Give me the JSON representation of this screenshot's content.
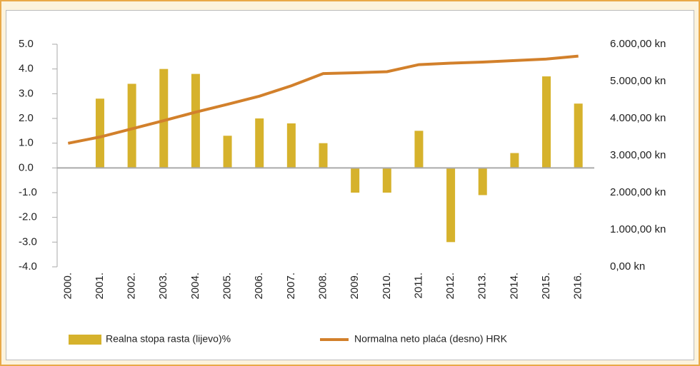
{
  "chart_data": {
    "type": "bar-line",
    "categories": [
      "2000.",
      "2001.",
      "2002.",
      "2003.",
      "2004.",
      "2005.",
      "2006.",
      "2007.",
      "2008.",
      "2009.",
      "2010.",
      "2011.",
      "2012.",
      "2013.",
      "2014.",
      "2015.",
      "2016."
    ],
    "series": [
      {
        "name": "Realna stopa rasta (lijevo)%",
        "type": "bar",
        "color": "#d6b22c",
        "values": [
          null,
          2.8,
          3.4,
          4.0,
          3.8,
          1.3,
          2.0,
          1.8,
          1.0,
          -1.0,
          -1.0,
          1.5,
          -3.0,
          -1.1,
          0.6,
          3.7,
          2.6
        ]
      },
      {
        "name": "Normalna neto plaća (desno) HRK",
        "type": "line",
        "axis": "y2",
        "color": "#d2802b",
        "values": [
          3330,
          3500,
          3720,
          3940,
          4170,
          4380,
          4600,
          4880,
          5210,
          5230,
          5260,
          5450,
          5490,
          5520,
          5560,
          5600,
          5680
        ]
      }
    ],
    "ylim": [
      -4,
      5
    ],
    "yticks": [
      {
        "value": -4,
        "label": "-4.0"
      },
      {
        "value": -3,
        "label": "-3.0"
      },
      {
        "value": -2,
        "label": "-2.0"
      },
      {
        "value": -1,
        "label": "-1.0"
      },
      {
        "value": 0,
        "label": "0.0"
      },
      {
        "value": 1,
        "label": "1.0"
      },
      {
        "value": 2,
        "label": "2.0"
      },
      {
        "value": 3,
        "label": "3.0"
      },
      {
        "value": 4,
        "label": "4.0"
      },
      {
        "value": 5,
        "label": "5.0"
      }
    ],
    "y2lim": [
      0,
      6000
    ],
    "y2ticks": [
      {
        "value": 0,
        "label": "0,00 kn"
      },
      {
        "value": 1000,
        "label": "1.000,00 kn"
      },
      {
        "value": 2000,
        "label": "2.000,00 kn"
      },
      {
        "value": 3000,
        "label": "3.000,00 kn"
      },
      {
        "value": 4000,
        "label": "4.000,00 kn"
      },
      {
        "value": 5000,
        "label": "5.000,00 kn"
      },
      {
        "value": 6000,
        "label": "6.000,00 kn"
      }
    ],
    "legend": "bottom"
  }
}
